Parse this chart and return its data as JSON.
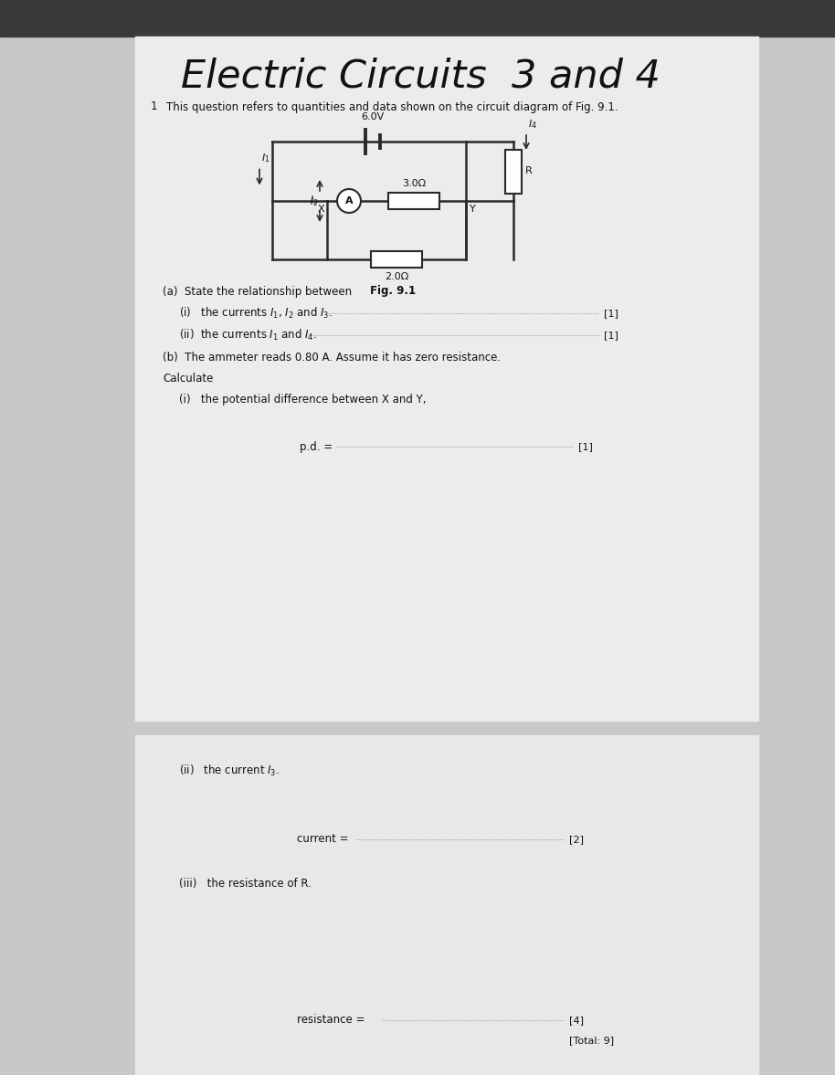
{
  "title": "Electric Circuits  3 and 4",
  "page_bg": "#c8c8c8",
  "paper_top_bg": "#ececec",
  "paper_bot_bg": "#e8e8e8",
  "toolbar_bg": "#3a3a3a",
  "question_number": "1",
  "intro_text": "This question refers to quantities and data shown on the circuit diagram of Fig. 9.1.",
  "battery_label": "6.0V",
  "resistor1_label": "3.0Ω",
  "resistor2_label": "2.0Ω",
  "resistor_R_label": "R",
  "fig_label": "Fig. 9.1",
  "ammeter_label": "A",
  "a_intro": "(a)  State the relationship between",
  "a_i": "(i)   the currents $I_1$, $I_2$ and $I_3$.",
  "a_ii": "(ii)  the currents $I_1$ and $I_4$.",
  "b_intro": "(b)  The ammeter reads 0.80 A. Assume it has zero resistance.",
  "b_calc": "Calculate",
  "b_i": "(i)   the potential difference between X and Y,",
  "b_i_label": "p.d. =",
  "b_i_mark": "[1]",
  "a_i_mark": "[1]",
  "a_ii_mark": "[1]",
  "b_ii_title": "(ii)   the current $I_3$.",
  "b_ii_label": "current =",
  "b_ii_mark": "[2]",
  "b_iii_title": "(iii)   the resistance of R.",
  "b_iii_label": "resistance =",
  "b_iii_mark": "[4]",
  "total": "[Total: 9]",
  "font_color": "#111111",
  "circuit_line_color": "#2a2a2a"
}
